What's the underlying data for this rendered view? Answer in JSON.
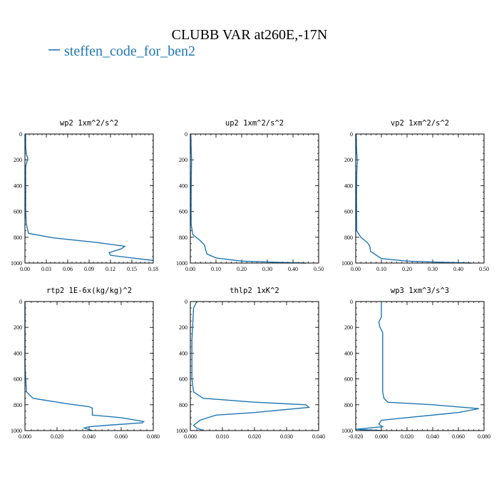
{
  "figure": {
    "title": "CLUBB VAR at260E,-17N",
    "legend_label": "steffen_code_for_ben2",
    "series_color": "#1f77b4"
  },
  "chart_data": [
    {
      "type": "line",
      "title": "wp2  1xm^2/s^2",
      "xlim": [
        0,
        0.18
      ],
      "ylim": [
        1000,
        0
      ],
      "xticks": [
        "0.00",
        "0.03",
        "0.06",
        "0.09",
        "0.12",
        "0.15",
        "0.18"
      ],
      "xtick_values": [
        0,
        0.03,
        0.06,
        0.09,
        0.12,
        0.15,
        0.18
      ],
      "yticks": [
        "0",
        "200",
        "400",
        "600",
        "800",
        "1000"
      ],
      "ytick_values": [
        0,
        200,
        400,
        600,
        800,
        1000
      ],
      "series": [
        {
          "x": [
            0.001,
            0.001,
            0.002,
            0.004,
            0.003,
            0.001,
            0.001,
            0.001,
            0.002,
            0.005,
            0.04,
            0.1,
            0.14,
            0.135,
            0.118,
            0.12,
            0.15,
            0.18
          ],
          "y": [
            0,
            100,
            160,
            185,
            210,
            250,
            400,
            600,
            700,
            770,
            805,
            840,
            870,
            890,
            920,
            940,
            960,
            980
          ]
        }
      ]
    },
    {
      "type": "line",
      "title": "up2  1xm^2/s^2",
      "xlim": [
        0,
        0.5
      ],
      "ylim": [
        1000,
        0
      ],
      "xticks": [
        "0.00",
        "0.10",
        "0.20",
        "0.30",
        "0.40",
        "0.50"
      ],
      "xtick_values": [
        0,
        0.1,
        0.2,
        0.3,
        0.4,
        0.5
      ],
      "yticks": [
        "0",
        "200",
        "400",
        "600",
        "800",
        "1000"
      ],
      "ytick_values": [
        0,
        200,
        400,
        600,
        800,
        1000
      ],
      "series": [
        {
          "x": [
            0.002,
            0.003,
            0.005,
            0.004,
            0.003,
            0.003,
            0.01,
            0.035,
            0.055,
            0.06,
            0.065,
            0.1,
            0.2,
            0.35,
            0.45
          ],
          "y": [
            0,
            100,
            200,
            300,
            500,
            700,
            780,
            820,
            860,
            900,
            930,
            960,
            985,
            995,
            1000
          ]
        }
      ]
    },
    {
      "type": "line",
      "title": "vp2  1xm^2/s^2",
      "xlim": [
        0,
        0.5
      ],
      "ylim": [
        1000,
        0
      ],
      "xticks": [
        "0.00",
        "0.10",
        "0.20",
        "0.30",
        "0.40",
        "0.50"
      ],
      "xtick_values": [
        0,
        0.1,
        0.2,
        0.3,
        0.4,
        0.5
      ],
      "yticks": [
        "0",
        "200",
        "400",
        "600",
        "800",
        "1000"
      ],
      "ytick_values": [
        0,
        200,
        400,
        600,
        800,
        1000
      ],
      "series": [
        {
          "x": [
            0.002,
            0.003,
            0.006,
            0.004,
            0.003,
            0.004,
            0.02,
            0.045,
            0.055,
            0.058,
            0.1,
            0.2,
            0.35,
            0.45
          ],
          "y": [
            0,
            100,
            220,
            300,
            500,
            750,
            800,
            840,
            870,
            910,
            965,
            985,
            995,
            1000
          ]
        }
      ]
    },
    {
      "type": "line",
      "title": "rtp2  1E-6x(kg/kg)^2",
      "xlim": [
        0,
        0.08
      ],
      "ylim": [
        1000,
        0
      ],
      "xticks": [
        "0.000",
        "0.020",
        "0.040",
        "0.060",
        "0.080"
      ],
      "xtick_values": [
        0,
        0.02,
        0.04,
        0.06,
        0.08
      ],
      "yticks": [
        "0",
        "200",
        "400",
        "600",
        "800",
        "1000"
      ],
      "ytick_values": [
        0,
        200,
        400,
        600,
        800,
        1000
      ],
      "series": [
        {
          "x": [
            0.0,
            0.0,
            0.0,
            0.001,
            0.005,
            0.025,
            0.04,
            0.042,
            0.042,
            0.06,
            0.074,
            0.073,
            0.05,
            0.04,
            0.037,
            0.042
          ],
          "y": [
            0,
            200,
            500,
            700,
            750,
            790,
            815,
            825,
            880,
            900,
            930,
            940,
            960,
            970,
            980,
            1000
          ]
        }
      ]
    },
    {
      "type": "line",
      "title": "thlp2  1xK^2",
      "xlim": [
        0,
        0.04
      ],
      "ylim": [
        1000,
        0
      ],
      "xticks": [
        "0.000",
        "0.010",
        "0.020",
        "0.030",
        "0.040"
      ],
      "xtick_values": [
        0,
        0.01,
        0.02,
        0.03,
        0.04
      ],
      "yticks": [
        "0",
        "200",
        "400",
        "600",
        "800",
        "1000"
      ],
      "ytick_values": [
        0,
        200,
        400,
        600,
        800,
        1000
      ],
      "series": [
        {
          "x": [
            0.002,
            0.001,
            0.0008,
            0.0005,
            0.0005,
            0.001,
            0.004,
            0.02,
            0.036,
            0.037,
            0.02,
            0.008,
            0.003,
            0.001,
            0.002,
            0.004
          ],
          "y": [
            0,
            50,
            150,
            300,
            600,
            700,
            750,
            780,
            800,
            820,
            860,
            880,
            920,
            960,
            980,
            1000
          ]
        }
      ]
    },
    {
      "type": "line",
      "title": "wp3  1xm^3/s^3",
      "xlim": [
        -0.02,
        0.08
      ],
      "ylim": [
        1000,
        0
      ],
      "xticks": [
        "-0.020",
        "0.000",
        "0.020",
        "0.040",
        "0.060",
        "0.080"
      ],
      "xtick_values": [
        -0.02,
        0,
        0.02,
        0.04,
        0.06,
        0.08
      ],
      "yticks": [
        "0",
        "200",
        "400",
        "600",
        "800",
        "1000"
      ],
      "ytick_values": [
        0,
        200,
        400,
        600,
        800,
        1000
      ],
      "series": [
        {
          "x": [
            0.0,
            0.0,
            -0.002,
            -0.001,
            0.001,
            0.001,
            0.001,
            0.001,
            0.002,
            0.005,
            0.04,
            0.076,
            0.06,
            0.01,
            0.0,
            -0.002,
            0.001,
            -0.02,
            0.0
          ],
          "y": [
            0,
            120,
            160,
            200,
            240,
            300,
            500,
            700,
            750,
            780,
            800,
            830,
            860,
            910,
            920,
            950,
            970,
            990,
            1000
          ]
        }
      ]
    }
  ]
}
